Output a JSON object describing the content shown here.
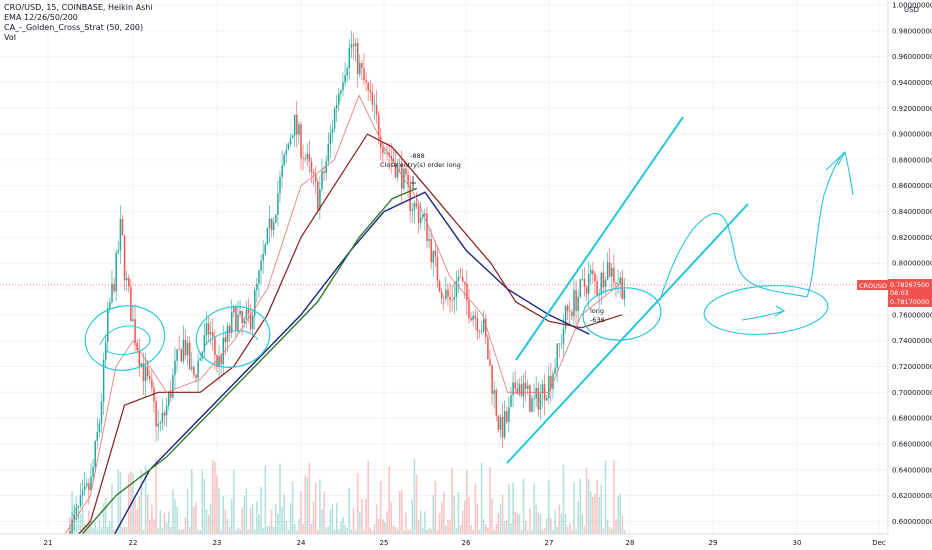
{
  "legend": {
    "symbol_line": "CRO/USD, 15, COINBASE, Heikin Ashi",
    "ema_line": "EMA 12/26/50/200",
    "strategy_line": "CA_-_Golden_Cross_Strat (50, 200)",
    "volume_line": "Vol"
  },
  "price_axis": {
    "currency": "USD",
    "ticks": [
      "1.00000000",
      "0.98000000",
      "0.96000000",
      "0.94000000",
      "0.92000000",
      "0.90000000",
      "0.88000000",
      "0.86000000",
      "0.84000000",
      "0.82000000",
      "0.80000000",
      "0.78000000",
      "0.76000000",
      "0.74000000",
      "0.72000000",
      "0.70000000",
      "0.68000000",
      "0.66000000",
      "0.64000000",
      "0.62000000",
      "0.60000000"
    ],
    "tick_values": [
      1.0,
      0.98,
      0.96,
      0.94,
      0.92,
      0.9,
      0.88,
      0.86,
      0.84,
      0.82,
      0.8,
      0.78,
      0.76,
      0.74,
      0.72,
      0.7,
      0.68,
      0.66,
      0.64,
      0.62,
      0.6
    ],
    "symbol_tag": "CROUSD",
    "current_price": "0.78267500",
    "countdown": "08:03",
    "second_price": "0.78170000",
    "current_value": 0.782675,
    "second_value": 0.7817
  },
  "time_axis": {
    "ticks": [
      "21",
      "22",
      "23",
      "24",
      "25",
      "26",
      "27",
      "28",
      "29",
      "30",
      "Dec"
    ]
  },
  "annotations": {
    "close_value": "-888",
    "close_text": "Close entry(s) order long",
    "long_label": "long",
    "long_value": "-636"
  },
  "colors": {
    "up": "#26a69a",
    "down": "#ef5350",
    "ema12": "#e57373",
    "ema26": "#8b1a1a",
    "ema50": "#2e7d32",
    "ema200": "#1a237e",
    "drawing": "#26c6da",
    "price_tag": "#ef5350"
  },
  "chart_data": {
    "type": "line",
    "x_labels": [
      "21",
      "22",
      "23",
      "24",
      "25",
      "26",
      "27",
      "28",
      "29",
      "30",
      "Dec"
    ],
    "close_path": [
      [
        21.0,
        0.555
      ],
      [
        21.3,
        0.6
      ],
      [
        21.5,
        0.63
      ],
      [
        21.6,
        0.68
      ],
      [
        21.7,
        0.76
      ],
      [
        21.8,
        0.8
      ],
      [
        21.85,
        0.83
      ],
      [
        21.9,
        0.79
      ],
      [
        22.0,
        0.75
      ],
      [
        22.1,
        0.72
      ],
      [
        22.2,
        0.7
      ],
      [
        22.3,
        0.67
      ],
      [
        22.4,
        0.69
      ],
      [
        22.5,
        0.72
      ],
      [
        22.6,
        0.74
      ],
      [
        22.7,
        0.71
      ],
      [
        22.8,
        0.73
      ],
      [
        22.9,
        0.75
      ],
      [
        23.0,
        0.72
      ],
      [
        23.1,
        0.74
      ],
      [
        23.2,
        0.76
      ],
      [
        23.3,
        0.75
      ],
      [
        23.4,
        0.76
      ],
      [
        23.5,
        0.79
      ],
      [
        23.6,
        0.82
      ],
      [
        23.7,
        0.85
      ],
      [
        23.8,
        0.88
      ],
      [
        23.9,
        0.91
      ],
      [
        24.0,
        0.89
      ],
      [
        24.1,
        0.87
      ],
      [
        24.2,
        0.85
      ],
      [
        24.3,
        0.88
      ],
      [
        24.4,
        0.92
      ],
      [
        24.5,
        0.95
      ],
      [
        24.6,
        0.97
      ],
      [
        24.7,
        0.95
      ],
      [
        24.8,
        0.93
      ],
      [
        24.9,
        0.91
      ],
      [
        25.0,
        0.89
      ],
      [
        25.1,
        0.88
      ],
      [
        25.2,
        0.87
      ],
      [
        25.3,
        0.85
      ],
      [
        25.4,
        0.84
      ],
      [
        25.5,
        0.83
      ],
      [
        25.6,
        0.8
      ],
      [
        25.7,
        0.78
      ],
      [
        25.8,
        0.77
      ],
      [
        25.9,
        0.79
      ],
      [
        26.0,
        0.77
      ],
      [
        26.1,
        0.76
      ],
      [
        26.2,
        0.75
      ],
      [
        26.3,
        0.71
      ],
      [
        26.4,
        0.67
      ],
      [
        26.5,
        0.68
      ],
      [
        26.6,
        0.71
      ],
      [
        26.7,
        0.7
      ],
      [
        26.8,
        0.69
      ],
      [
        26.9,
        0.7
      ],
      [
        27.0,
        0.71
      ],
      [
        27.1,
        0.73
      ],
      [
        27.2,
        0.76
      ],
      [
        27.3,
        0.77
      ],
      [
        27.4,
        0.78
      ],
      [
        27.5,
        0.79
      ],
      [
        27.6,
        0.78
      ],
      [
        27.7,
        0.8
      ],
      [
        27.8,
        0.79
      ],
      [
        27.9,
        0.783
      ]
    ],
    "ema12": [
      [
        21.0,
        0.57
      ],
      [
        21.5,
        0.62
      ],
      [
        21.8,
        0.72
      ],
      [
        22.0,
        0.74
      ],
      [
        22.4,
        0.7
      ],
      [
        22.8,
        0.71
      ],
      [
        23.2,
        0.74
      ],
      [
        23.6,
        0.78
      ],
      [
        24.0,
        0.86
      ],
      [
        24.4,
        0.88
      ],
      [
        24.7,
        0.93
      ],
      [
        25.0,
        0.89
      ],
      [
        25.4,
        0.85
      ],
      [
        25.8,
        0.79
      ],
      [
        26.2,
        0.76
      ],
      [
        26.5,
        0.7
      ],
      [
        27.0,
        0.7
      ],
      [
        27.4,
        0.76
      ],
      [
        27.9,
        0.785
      ]
    ],
    "ema26": [
      [
        21.0,
        0.565
      ],
      [
        21.5,
        0.6
      ],
      [
        21.9,
        0.69
      ],
      [
        22.3,
        0.7
      ],
      [
        22.8,
        0.7
      ],
      [
        23.2,
        0.72
      ],
      [
        23.6,
        0.76
      ],
      [
        24.0,
        0.82
      ],
      [
        24.4,
        0.86
      ],
      [
        24.8,
        0.9
      ],
      [
        25.1,
        0.89
      ],
      [
        25.5,
        0.86
      ],
      [
        25.9,
        0.83
      ],
      [
        26.3,
        0.8
      ],
      [
        26.6,
        0.77
      ],
      [
        27.0,
        0.755
      ],
      [
        27.4,
        0.75
      ],
      [
        27.9,
        0.76
      ]
    ],
    "ema50": [
      [
        21.0,
        0.56
      ],
      [
        21.8,
        0.62
      ],
      [
        22.4,
        0.65
      ],
      [
        23.0,
        0.69
      ],
      [
        23.6,
        0.73
      ],
      [
        24.2,
        0.77
      ],
      [
        24.7,
        0.82
      ],
      [
        25.1,
        0.85
      ],
      [
        25.4,
        0.858
      ]
    ],
    "ema200": [
      [
        21.7,
        0.58
      ],
      [
        22.2,
        0.64
      ],
      [
        22.8,
        0.68
      ],
      [
        23.4,
        0.72
      ],
      [
        24.0,
        0.76
      ],
      [
        24.6,
        0.81
      ],
      [
        25.0,
        0.84
      ],
      [
        25.5,
        0.855
      ],
      [
        26.0,
        0.81
      ],
      [
        26.5,
        0.78
      ],
      [
        27.0,
        0.76
      ],
      [
        27.5,
        0.745
      ]
    ],
    "volume": "bars along bottom"
  }
}
